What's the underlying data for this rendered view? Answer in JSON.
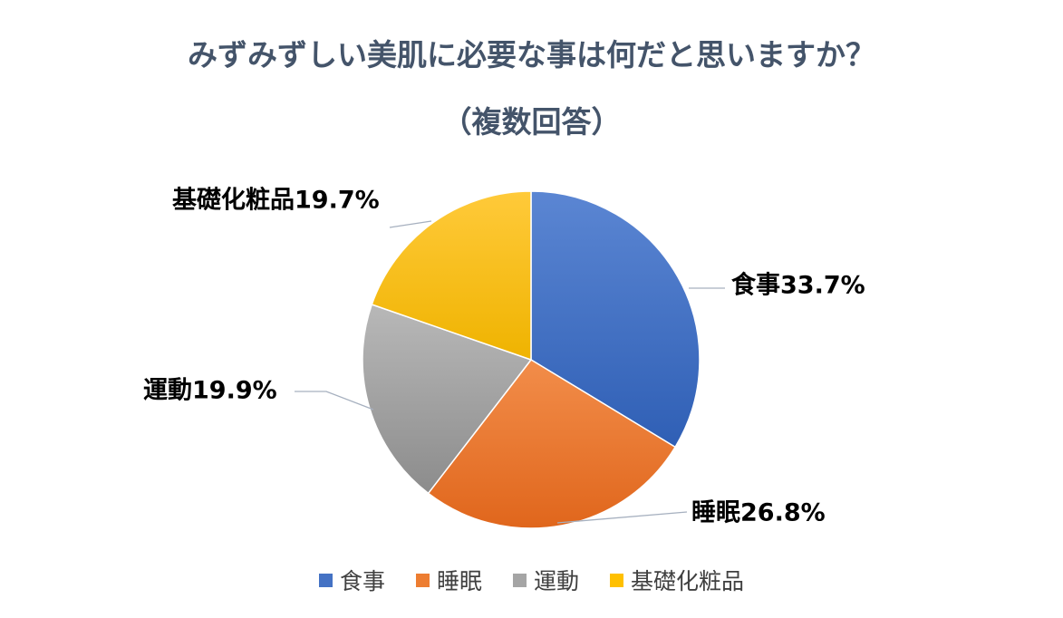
{
  "title_line1": "みずみずしい美肌に必要な事は何だと思いますか？",
  "title_line2": "（複数回答）",
  "chart_data": {
    "type": "pie",
    "slices": [
      {
        "name": "食事",
        "value": 33.7,
        "label": "食事33.7%",
        "color": "#4472c4"
      },
      {
        "name": "睡眠",
        "value": 26.8,
        "label": "睡眠26.8%",
        "color": "#ed7d31"
      },
      {
        "name": "運動",
        "value": 19.9,
        "label": "運動19.9%",
        "color": "#a5a5a5"
      },
      {
        "name": "基礎化粧品",
        "value": 19.7,
        "label": "基礎化粧品19.7%",
        "color": "#ffc000"
      }
    ],
    "legend_position": "bottom"
  }
}
